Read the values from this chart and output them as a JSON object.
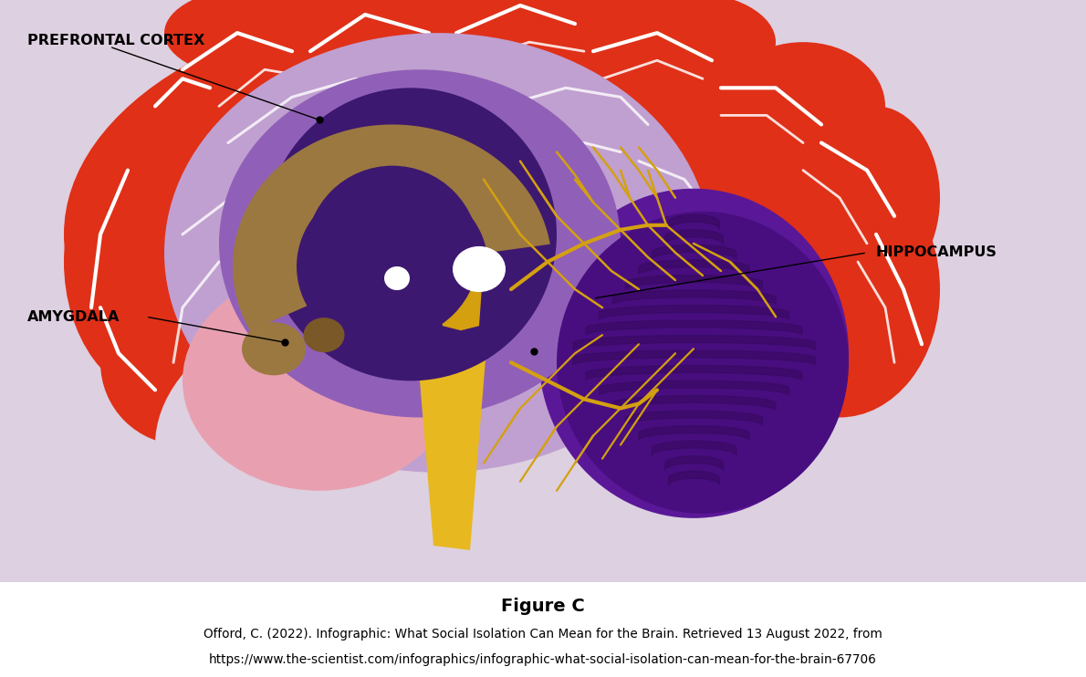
{
  "bg_color": "#ddd0e0",
  "white_bg": "#ffffff",
  "brain_red": "#e03018",
  "purple_light": "#c0a0d0",
  "purple_mid": "#9060b8",
  "purple_dark": "#5a2898",
  "purple_deep": "#3d1870",
  "brown_light": "#9b7840",
  "brown_dark": "#7a5828",
  "pink": "#e8a0b0",
  "yellow": "#e8b820",
  "yellow_dark": "#d4a010",
  "cereb_purple": "#5a1898",
  "cereb_mid": "#480e80",
  "cereb_dark": "#380a60",
  "cereb_yellow": "#d4a010",
  "white_color": "#ffffff",
  "figure_title": "Figure C",
  "caption_line1": "Offord, C. (2022). Infographic: What Social Isolation Can Mean for the Brain. Retrieved 13 August 2022, from",
  "caption_line2": "https://www.the-scientist.com/infographics/infographic-what-social-isolation-can-mean-for-the-brain-67706"
}
